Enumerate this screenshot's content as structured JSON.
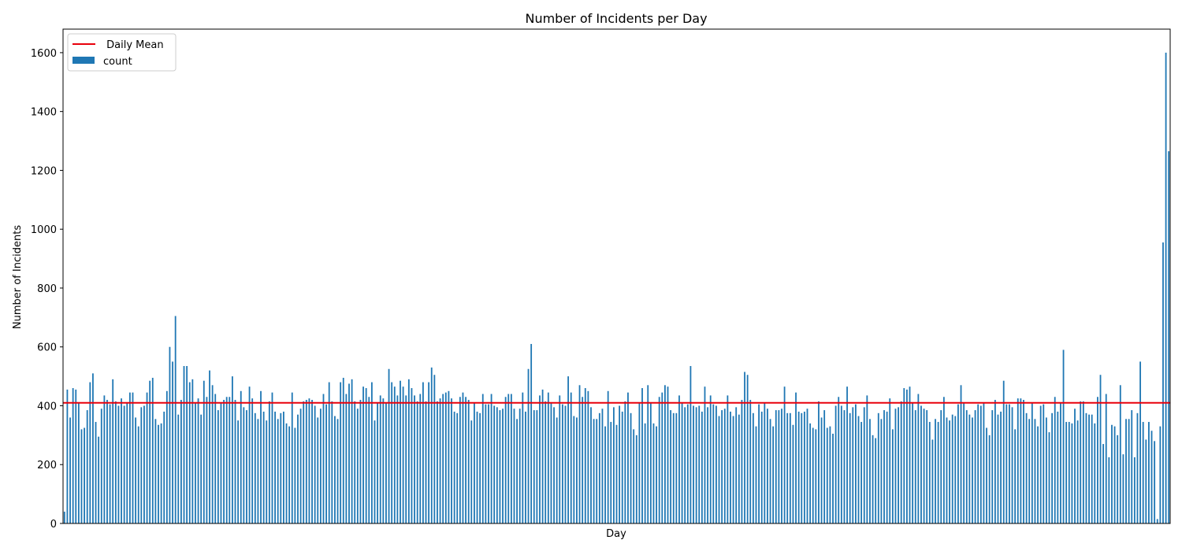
{
  "chart_data": {
    "type": "bar",
    "title": "Number of Incidents per Day",
    "xlabel": "Day",
    "ylabel": "Number of Incidents",
    "ylim": [
      0,
      1680
    ],
    "yticks": [
      0,
      200,
      400,
      600,
      800,
      1000,
      1200,
      1400,
      1600
    ],
    "grid": false,
    "legend_position": "top-left",
    "colors": {
      "bar": "#1f77b4",
      "mean": "#e8000b"
    },
    "mean_line": {
      "name": " Daily Mean",
      "value": 410
    },
    "series": [
      {
        "name": "count",
        "values": [
          40,
          455,
          360,
          460,
          455,
          410,
          320,
          325,
          385,
          480,
          510,
          345,
          295,
          390,
          435,
          420,
          405,
          490,
          415,
          400,
          425,
          400,
          410,
          445,
          445,
          360,
          330,
          395,
          400,
          445,
          485,
          495,
          355,
          335,
          340,
          380,
          450,
          600,
          550,
          705,
          370,
          420,
          535,
          535,
          480,
          490,
          410,
          425,
          370,
          485,
          430,
          520,
          470,
          440,
          385,
          410,
          420,
          430,
          430,
          500,
          420,
          350,
          450,
          395,
          385,
          465,
          425,
          375,
          355,
          450,
          380,
          350,
          415,
          445,
          380,
          355,
          375,
          380,
          340,
          330,
          445,
          325,
          370,
          390,
          415,
          420,
          425,
          420,
          400,
          360,
          390,
          440,
          405,
          480,
          415,
          365,
          355,
          480,
          495,
          440,
          475,
          490,
          415,
          390,
          420,
          465,
          460,
          430,
          480,
          350,
          410,
          435,
          425,
          410,
          525,
          480,
          465,
          435,
          485,
          465,
          435,
          490,
          460,
          435,
          415,
          440,
          480,
          415,
          480,
          530,
          505,
          415,
          425,
          440,
          445,
          450,
          425,
          380,
          375,
          430,
          445,
          430,
          420,
          350,
          410,
          380,
          375,
          440,
          405,
          405,
          440,
          400,
          395,
          385,
          390,
          430,
          440,
          440,
          390,
          355,
          390,
          445,
          380,
          525,
          610,
          385,
          385,
          435,
          455,
          415,
          445,
          410,
          395,
          360,
          435,
          405,
          400,
          500,
          445,
          365,
          360,
          470,
          430,
          460,
          450,
          395,
          355,
          355,
          375,
          390,
          330,
          450,
          345,
          395,
          335,
          400,
          380,
          415,
          445,
          375,
          320,
          300,
          410,
          460,
          340,
          470,
          410,
          340,
          330,
          430,
          445,
          470,
          465,
          385,
          375,
          375,
          435,
          410,
          395,
          405,
          535,
          400,
          395,
          400,
          380,
          465,
          395,
          435,
          405,
          400,
          365,
          385,
          390,
          435,
          380,
          365,
          395,
          370,
          420,
          515,
          505,
          420,
          375,
          330,
          405,
          380,
          410,
          390,
          355,
          330,
          385,
          385,
          390,
          465,
          375,
          375,
          335,
          445,
          380,
          375,
          380,
          390,
          340,
          325,
          320,
          415,
          360,
          385,
          325,
          330,
          305,
          400,
          430,
          400,
          385,
          465,
          375,
          395,
          405,
          365,
          345,
          395,
          435,
          355,
          300,
          290,
          375,
          355,
          385,
          380,
          425,
          320,
          390,
          395,
          415,
          460,
          455,
          465,
          410,
          385,
          440,
          400,
          390,
          385,
          345,
          285,
          355,
          345,
          385,
          430,
          360,
          350,
          370,
          365,
          405,
          470,
          410,
          385,
          370,
          360,
          385,
          405,
          400,
          410,
          325,
          300,
          385,
          420,
          370,
          380,
          485,
          405,
          405,
          395,
          320,
          425,
          425,
          420,
          375,
          355,
          410,
          355,
          330,
          400,
          405,
          360,
          310,
          375,
          430,
          380,
          410,
          590,
          345,
          345,
          340,
          390,
          350,
          415,
          415,
          375,
          370,
          370,
          340,
          430,
          505,
          270,
          440,
          225,
          335,
          330,
          300,
          470,
          235,
          355,
          355,
          385,
          225,
          375,
          550,
          345,
          285,
          345,
          315,
          280,
          15,
          330,
          955,
          1600,
          1265
        ]
      }
    ]
  }
}
